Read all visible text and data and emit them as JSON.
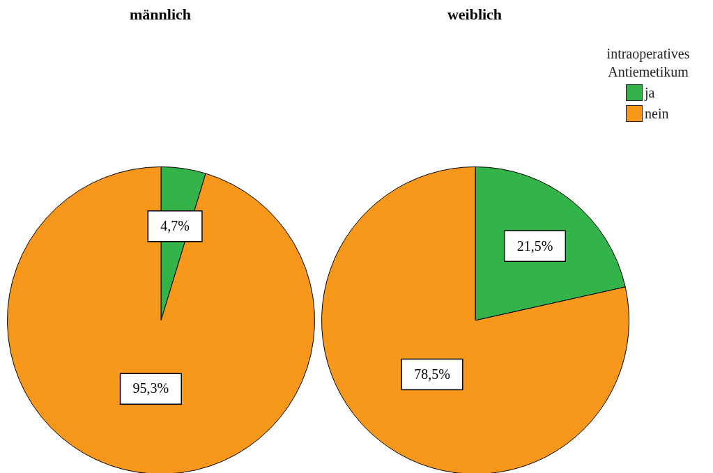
{
  "chart_data": [
    {
      "type": "pie",
      "title": "männlich",
      "categories": [
        null,
        null
      ],
      "values": [
        4.7,
        95.3
      ],
      "colors": [
        "#33b34a",
        "#f7981d"
      ],
      "value_labels": [
        "4,7%",
        "95,3%"
      ],
      "legend": false
    },
    {
      "type": "pie",
      "title": "weiblich",
      "categories": [
        "ja",
        "nein"
      ],
      "values": [
        21.5,
        78.5
      ],
      "colors": [
        "#33b34a",
        "#f7981d"
      ],
      "value_labels": [
        "21,5%",
        "78,5%"
      ],
      "legend": "top right",
      "legend_title": "intraoperatives Antiemetikum"
    }
  ]
}
